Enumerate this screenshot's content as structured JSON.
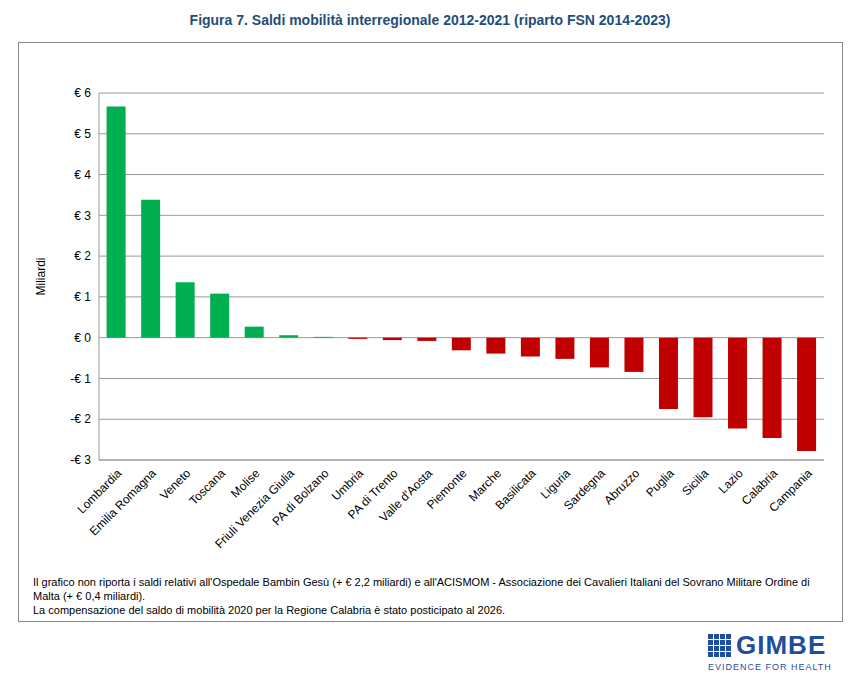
{
  "chart_data": {
    "type": "bar",
    "title": "Figura 7. Saldi mobilità interregionale 2012-2021 (riparto FSN 2014-2023)",
    "y_label": "Miliardi",
    "categories": [
      "Lombardia",
      "Emilia Romagna",
      "Veneto",
      "Toscana",
      "Molise",
      "Friuli Venezia Giulia",
      "PA di Bolzano",
      "Umbria",
      "PA di Trento",
      "Valle d'Aosta",
      "Piemonte",
      "Marche",
      "Basilicata",
      "Liguria",
      "Sardegna",
      "Abruzzo",
      "Puglia",
      "Sicilia",
      "Lazio",
      "Calabria",
      "Campania"
    ],
    "values": [
      5.67,
      3.38,
      1.36,
      1.08,
      0.27,
      0.06,
      0.02,
      -0.03,
      -0.06,
      -0.08,
      -0.31,
      -0.39,
      -0.46,
      -0.52,
      -0.73,
      -0.84,
      -1.75,
      -1.95,
      -2.23,
      -2.46,
      -2.78
    ],
    "colors": [
      "#00b050",
      "#00b050",
      "#00b050",
      "#00b050",
      "#00b050",
      "#00b050",
      "#00b050",
      "#c00000",
      "#c00000",
      "#c00000",
      "#c00000",
      "#c00000",
      "#c00000",
      "#c00000",
      "#c00000",
      "#c00000",
      "#c00000",
      "#c00000",
      "#c00000",
      "#c00000",
      "#c00000"
    ],
    "ylim": [
      -3,
      6
    ],
    "yticks": [
      {
        "value": -3,
        "label": "-€ 3"
      },
      {
        "value": -2,
        "label": "-€ 2"
      },
      {
        "value": -1,
        "label": "-€ 1"
      },
      {
        "value": 0,
        "label": "€ 0"
      },
      {
        "value": 1,
        "label": "€ 1"
      },
      {
        "value": 2,
        "label": "€ 2"
      },
      {
        "value": 3,
        "label": "€ 3"
      },
      {
        "value": 4,
        "label": "€ 4"
      },
      {
        "value": 5,
        "label": "€ 5"
      },
      {
        "value": 6,
        "label": "€ 6"
      }
    ],
    "grid": true,
    "annotations": [
      "Il grafico non riporta i saldi relativi all'Ospedale Bambin Gesù (+ € 2,2 miliardi) e all'ACISMOM - Associazione dei Cavalieri Italiani del Sovrano Militare Ordine di Malta (+ € 0,4 miliardi).",
      "La compensazione del saldo di mobilità 2020 per la Regione Calabria è stato posticipato al 2026."
    ],
    "logo": {
      "name": "GIMBE",
      "tagline": "EVIDENCE FOR HEALTH"
    }
  }
}
